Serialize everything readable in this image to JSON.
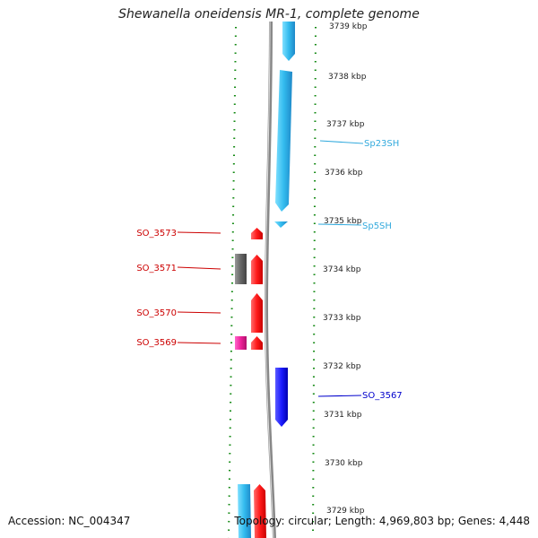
{
  "title": "Shewanella oneidensis MR-1, complete genome",
  "accession": "Accession: NC_004347",
  "summary": "Topology: circular; Length: 4,969,803 bp; Genes: 4,448",
  "colors": {
    "forward_cds": "#ff1a1a",
    "reverse_cds": "#1a1aff",
    "rna": "#33bbee",
    "grey_feature": "#666666",
    "pink_feature": "#ee2299",
    "label_red": "#cc0000",
    "label_blue": "#0000cc",
    "label_cyan": "#33aadd",
    "ticks": "#118811"
  },
  "scale_labels": [
    {
      "kbp": 3739,
      "text": "3739 kbp"
    },
    {
      "kbp": 3738,
      "text": "3738 kbp"
    },
    {
      "kbp": 3737,
      "text": "3737 kbp"
    },
    {
      "kbp": 3736,
      "text": "3736 kbp"
    },
    {
      "kbp": 3735,
      "text": "3735 kbp"
    },
    {
      "kbp": 3734,
      "text": "3734 kbp"
    },
    {
      "kbp": 3733,
      "text": "3733 kbp"
    },
    {
      "kbp": 3732,
      "text": "3732 kbp"
    },
    {
      "kbp": 3731,
      "text": "3731 kbp"
    },
    {
      "kbp": 3730,
      "text": "3730 kbp"
    },
    {
      "kbp": 3729,
      "text": "3729 kbp"
    }
  ],
  "feature_labels": [
    {
      "text": "SO_3573",
      "side": "left",
      "color": "label_red"
    },
    {
      "text": "SO_3571",
      "side": "left",
      "color": "label_red"
    },
    {
      "text": "SO_3570",
      "side": "left",
      "color": "label_red"
    },
    {
      "text": "SO_3569",
      "side": "left",
      "color": "label_red"
    },
    {
      "text": "Sp23SH",
      "side": "right",
      "color": "label_cyan"
    },
    {
      "text": "Sp5SH",
      "side": "right",
      "color": "label_cyan"
    },
    {
      "text": "SO_3567",
      "side": "right",
      "color": "label_blue"
    }
  ]
}
